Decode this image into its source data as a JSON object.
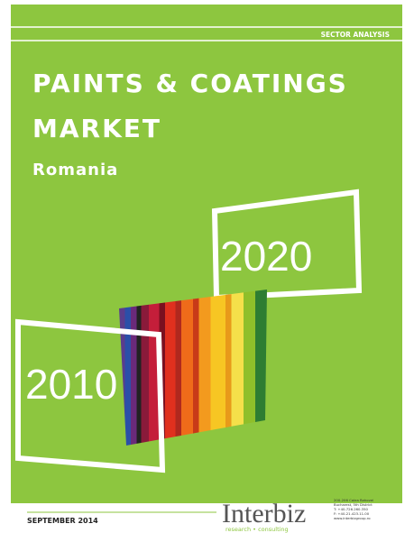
{
  "header": {
    "label": "SECTOR ANALYSIS"
  },
  "title": {
    "line1": "PAINTS & COATINGS",
    "line2": "MARKET",
    "subtitle": "Romania"
  },
  "years": {
    "end": "2020",
    "start": "2010"
  },
  "footer": {
    "date": "SEPTEMBER 2014",
    "logo": "Interbiz",
    "tagline": "research • consulting",
    "contact": [
      "200-206 Calea Rahovei",
      "Bucharest, 5th District",
      "T: +40-726.260.350",
      "F: +40-21.423.11.00",
      "www.interbizgroup.ro"
    ]
  }
}
